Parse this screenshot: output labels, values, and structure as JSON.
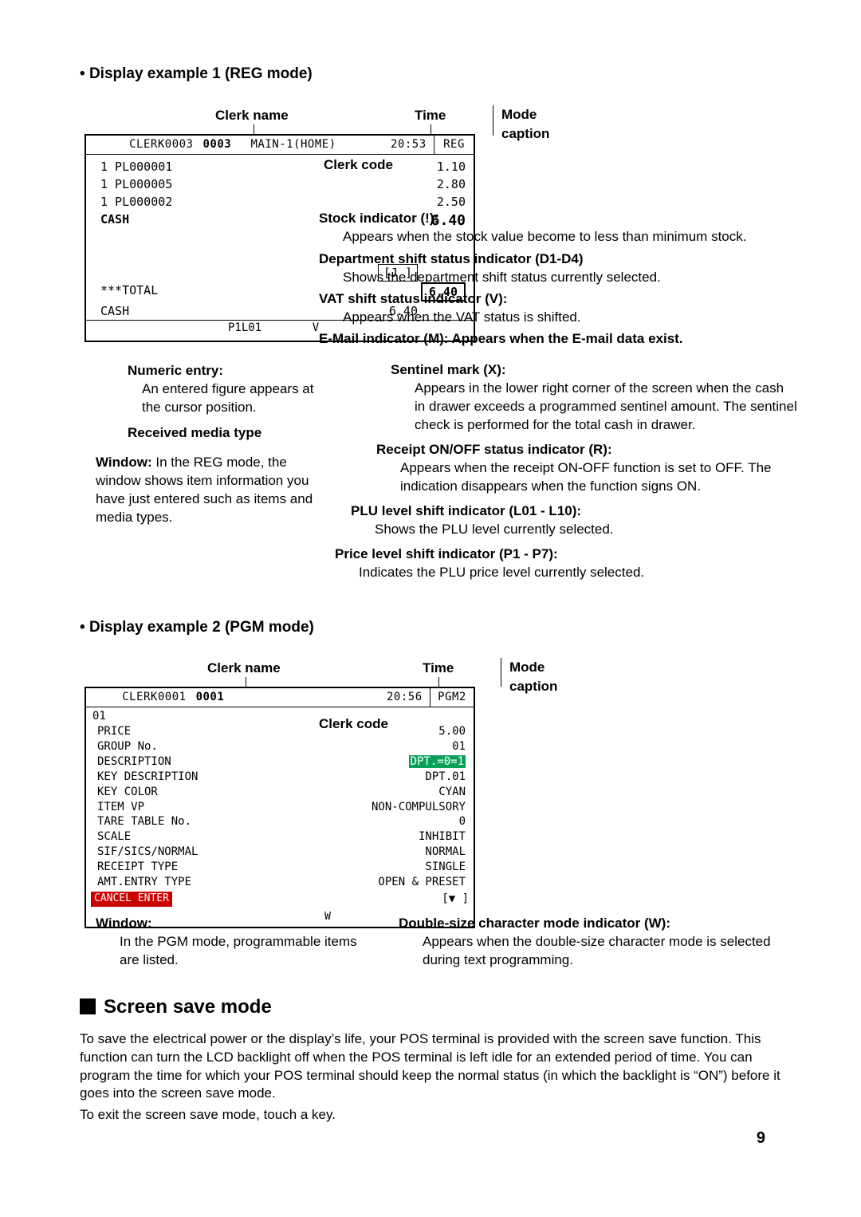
{
  "example1": {
    "heading": "Display example 1 (REG mode)",
    "topLabels": {
      "clerkName": "Clerk name",
      "time": "Time",
      "modeCaption": "Mode caption"
    },
    "header": {
      "clerk": "CLERK0003",
      "code": "0003",
      "center": "MAIN-1(HOME)",
      "time": "20:53",
      "mode": "REG"
    },
    "items": [
      {
        "l": "1 PL000001",
        "r": "1.10"
      },
      {
        "l": "1 PL000005",
        "r": "2.80"
      },
      {
        "l": "1 PL000002",
        "r": "2.50"
      }
    ],
    "cash": {
      "label": "CASH",
      "value": "6.40"
    },
    "j": "[J ]",
    "total": {
      "label": "***TOTAL",
      "value": "6.40"
    },
    "cash2": {
      "label": "CASH",
      "value": "6.40"
    },
    "indicators": {
      "p": "P1L01",
      "v": "V"
    },
    "callouts": {
      "clerkCode": "Clerk code",
      "stock": {
        "t": "Stock indicator (!):",
        "b": "Appears when the stock value become to less than minimum stock."
      },
      "dept": {
        "t": "Department shift status indicator (D1-D4)",
        "b": "Shows the department shift status currently selected."
      },
      "vat": {
        "t": "VAT shift status indicator (V):",
        "b": "Appears when the VAT status is shifted."
      },
      "email": {
        "t": "E-Mail indicator (M): Appears when the E-mail data exist."
      },
      "sentinel": {
        "t": "Sentinel mark (X):",
        "b": "Appears in the lower right corner of the screen when the cash in drawer exceeds a programmed sentinel amount. The sentinel check is performed for the total cash in drawer."
      },
      "receipt": {
        "t": "Receipt ON/OFF status indicator (R):",
        "b": "Appears when the receipt ON-OFF function is set to OFF. The indication disappears when the function signs ON."
      },
      "plu": {
        "t": "PLU level shift indicator (L01 - L10):",
        "b": "Shows the PLU level currently selected."
      },
      "price": {
        "t": "Price level shift indicator (P1 - P7):",
        "b": "Indicates the PLU price level currently selected."
      },
      "numeric": {
        "t": "Numeric entry:",
        "b": "An entered figure appears at the cursor position."
      },
      "media": "Received media type",
      "window": {
        "t": "Window:",
        "b": "In the REG mode, the window shows item information you have just entered such as items and media types."
      }
    }
  },
  "example2": {
    "heading": "Display example 2 (PGM mode)",
    "topLabels": {
      "clerkName": "Clerk name",
      "time": "Time",
      "modeCaption": "Mode caption"
    },
    "header": {
      "clerk": "CLERK0001",
      "code": "0001",
      "center": "",
      "time": "20:56",
      "mode": "PGM2"
    },
    "subhead": "01",
    "rows": [
      {
        "l": "PRICE",
        "r": "5.00"
      },
      {
        "l": "GROUP No.",
        "r": "01"
      },
      {
        "l": "DESCRIPTION",
        "r": "DPT.=0=1",
        "hl": true
      },
      {
        "l": "KEY DESCRIPTION",
        "r": "DPT.01"
      },
      {
        "l": "KEY COLOR",
        "r": "CYAN"
      },
      {
        "l": "ITEM VP",
        "r": "NON-COMPULSORY"
      },
      {
        "l": "TARE TABLE No.",
        "r": "0"
      },
      {
        "l": "SCALE",
        "r": "INHIBIT"
      },
      {
        "l": "SIF/SICS/NORMAL",
        "r": "NORMAL"
      },
      {
        "l": "RECEIPT TYPE",
        "r": "SINGLE"
      },
      {
        "l": "AMT.ENTRY TYPE",
        "r": "OPEN & PRESET"
      }
    ],
    "cancelEnter": "CANCEL ENTER",
    "arrowInd": "[▼ ]",
    "wInd": "W",
    "callouts": {
      "clerkCode": "Clerk code",
      "window": {
        "t": "Window:",
        "b": "In the PGM mode, programmable items are listed."
      },
      "wmode": {
        "t": "Double-size character mode indicator (W):",
        "b": "Appears when the double-size character mode is selected during text programming."
      }
    }
  },
  "screenSave": {
    "heading": "Screen save mode",
    "p1": "To save the electrical power or the display’s life, your POS terminal is provided with the screen save function. This function can turn the LCD backlight off when the POS terminal is left idle for an extended period of time. You can program the time for which your POS terminal should keep the normal status (in which the backlight is “ON”) before it goes into the screen save mode.",
    "p2": "To exit the screen save mode, touch a key."
  },
  "pageNumber": "9",
  "colors": {
    "text": "#000000",
    "bg": "#ffffff",
    "green": "#0aa05a",
    "red": "#c00000"
  }
}
